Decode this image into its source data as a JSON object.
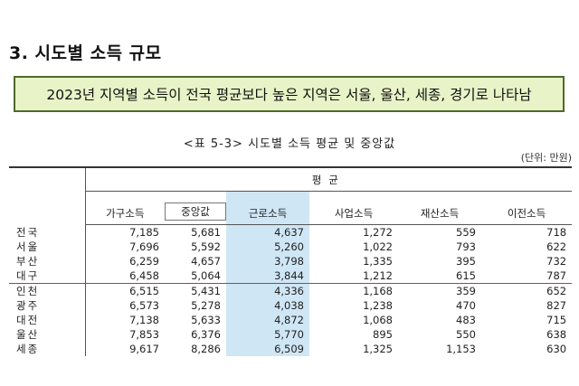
{
  "heading": "3. 시도별 소득 규모",
  "summary": "2023년 지역별 소득이 전국 평균보다 높은 지역은 서울, 울산, 세종, 경기로 나타남",
  "caption": "<표 5-3> 시도별 소득 평균 및 중앙값",
  "unit": "(단위: 만원)",
  "table": {
    "group_header": "평균",
    "columns": [
      "가구소득",
      "중앙값",
      "근로소득",
      "사업소득",
      "재산소득",
      "이전소득"
    ],
    "rows": [
      {
        "region": "전국",
        "values": [
          "7,185",
          "5,681",
          "4,637",
          "1,272",
          "559",
          "718"
        ]
      },
      {
        "region": "서울",
        "values": [
          "7,696",
          "5,592",
          "5,260",
          "1,022",
          "793",
          "622"
        ]
      },
      {
        "region": "부산",
        "values": [
          "6,259",
          "4,657",
          "3,798",
          "1,335",
          "395",
          "732"
        ]
      },
      {
        "region": "대구",
        "values": [
          "6,458",
          "5,064",
          "3,844",
          "1,212",
          "615",
          "787"
        ]
      },
      {
        "region": "인천",
        "values": [
          "6,515",
          "5,431",
          "4,336",
          "1,168",
          "359",
          "652"
        ]
      },
      {
        "region": "광주",
        "values": [
          "6,573",
          "5,278",
          "4,038",
          "1,238",
          "470",
          "827"
        ]
      },
      {
        "region": "대전",
        "values": [
          "7,138",
          "5,633",
          "4,872",
          "1,068",
          "483",
          "715"
        ]
      },
      {
        "region": "울산",
        "values": [
          "7,853",
          "6,376",
          "5,770",
          "895",
          "550",
          "638"
        ]
      },
      {
        "region": "세종",
        "values": [
          "9,617",
          "8,286",
          "6,509",
          "1,325",
          "1,153",
          "630"
        ]
      }
    ]
  },
  "colors": {
    "summary_bg": "#e8f3c7",
    "summary_border": "#4f6a2a",
    "highlight_column": "#cfe6f5",
    "separator_line": "#c0392b"
  }
}
